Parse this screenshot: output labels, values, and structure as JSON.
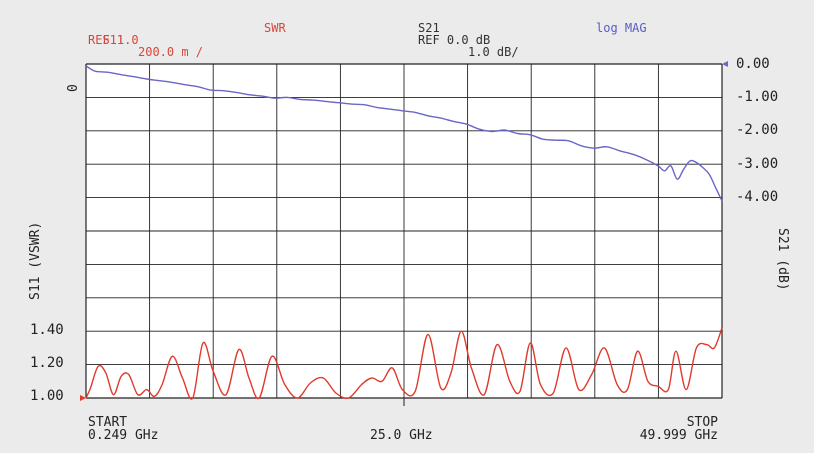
{
  "header": {
    "s11_label": "S11",
    "s11_ref": "REF 1.0",
    "s11_scale": "200.0 m /",
    "s11_format": "SWR",
    "s21_label": "S21",
    "s21_ref": "REF 0.0 dB",
    "s21_scale": "1.0 dB/",
    "s21_format": "log MAG",
    "zero_marker": "0"
  },
  "colors": {
    "s11": "#e03a2c",
    "s21": "#6a66c6",
    "grid": "#222222",
    "background": "#ebebeb",
    "plot_bg": "#ffffff"
  },
  "chart_data": {
    "type": "line",
    "title": "",
    "xlabel": "",
    "x_start_label": "START",
    "x_start_value": "0.249 GHz",
    "x_center_value": "25.0 GHz",
    "x_stop_label": "STOP",
    "x_stop_value": "49.999 GHz",
    "xlim": [
      0.249,
      49.999
    ],
    "left_axis_title": "S11 (VSWR)",
    "right_axis_title": "S21 (dB)",
    "left_ticks": [
      "1.40",
      "1.20",
      "1.00"
    ],
    "right_ticks": [
      "0.00",
      "-1.00",
      "-2.00",
      "-3.00",
      "-4.00"
    ],
    "left_ylim": [
      1.0,
      3.0
    ],
    "right_ylim": [
      -10.0,
      0.0
    ],
    "grid": true,
    "series": [
      {
        "name": "S21",
        "axis": "right",
        "x": [
          0.249,
          0.5,
          1,
          2,
          3,
          4,
          5,
          6,
          7,
          8,
          9,
          10,
          11,
          12,
          13,
          14,
          15,
          16,
          17,
          18,
          19,
          20,
          21,
          22,
          23,
          24,
          25,
          26,
          27,
          28,
          29,
          30,
          31,
          32,
          33,
          34,
          35,
          36,
          37,
          38,
          39,
          40,
          41,
          42,
          43,
          44,
          45,
          45.5,
          46,
          46.5,
          47,
          47.5,
          48,
          48.5,
          49,
          49.5,
          49.999
        ],
        "values": [
          -0.05,
          -0.12,
          -0.22,
          -0.25,
          -0.32,
          -0.38,
          -0.45,
          -0.5,
          -0.55,
          -0.62,
          -0.68,
          -0.78,
          -0.8,
          -0.85,
          -0.92,
          -0.96,
          -1.02,
          -1.0,
          -1.06,
          -1.08,
          -1.12,
          -1.16,
          -1.2,
          -1.22,
          -1.3,
          -1.35,
          -1.4,
          -1.45,
          -1.55,
          -1.62,
          -1.72,
          -1.8,
          -1.95,
          -2.02,
          -1.98,
          -2.08,
          -2.12,
          -2.25,
          -2.28,
          -2.3,
          -2.45,
          -2.52,
          -2.48,
          -2.6,
          -2.7,
          -2.85,
          -3.05,
          -3.2,
          -3.05,
          -3.45,
          -3.15,
          -2.9,
          -2.95,
          -3.1,
          -3.3,
          -3.7,
          -4.1
        ]
      },
      {
        "name": "S11",
        "axis": "left",
        "x": [
          0.249,
          0.6,
          1.2,
          1.8,
          2.4,
          3.0,
          3.6,
          4.3,
          5.0,
          5.6,
          6.2,
          7.0,
          7.8,
          8.6,
          9.4,
          10.2,
          11.2,
          12.2,
          13.0,
          13.8,
          14.8,
          15.8,
          16.8,
          17.8,
          18.8,
          19.8,
          20.8,
          21.8,
          22.6,
          23.4,
          24.2,
          25.0,
          26.0,
          27.0,
          28.0,
          28.8,
          29.6,
          30.4,
          31.4,
          32.4,
          33.4,
          34.2,
          35.0,
          35.8,
          36.8,
          37.8,
          38.8,
          39.8,
          40.8,
          41.8,
          42.6,
          43.4,
          44.2,
          45.0,
          45.8,
          46.4,
          47.2,
          48.0,
          48.8,
          49.4,
          49.999
        ],
        "values": [
          1.0,
          1.06,
          1.19,
          1.15,
          1.02,
          1.13,
          1.14,
          1.02,
          1.05,
          1.01,
          1.08,
          1.25,
          1.12,
          1.0,
          1.33,
          1.16,
          1.02,
          1.29,
          1.12,
          1.0,
          1.25,
          1.08,
          1.0,
          1.09,
          1.12,
          1.03,
          1.0,
          1.08,
          1.12,
          1.1,
          1.18,
          1.05,
          1.04,
          1.38,
          1.06,
          1.15,
          1.4,
          1.18,
          1.02,
          1.32,
          1.1,
          1.04,
          1.33,
          1.08,
          1.03,
          1.3,
          1.05,
          1.14,
          1.3,
          1.08,
          1.05,
          1.28,
          1.1,
          1.07,
          1.05,
          1.28,
          1.05,
          1.3,
          1.32,
          1.3,
          1.42
        ]
      }
    ]
  }
}
